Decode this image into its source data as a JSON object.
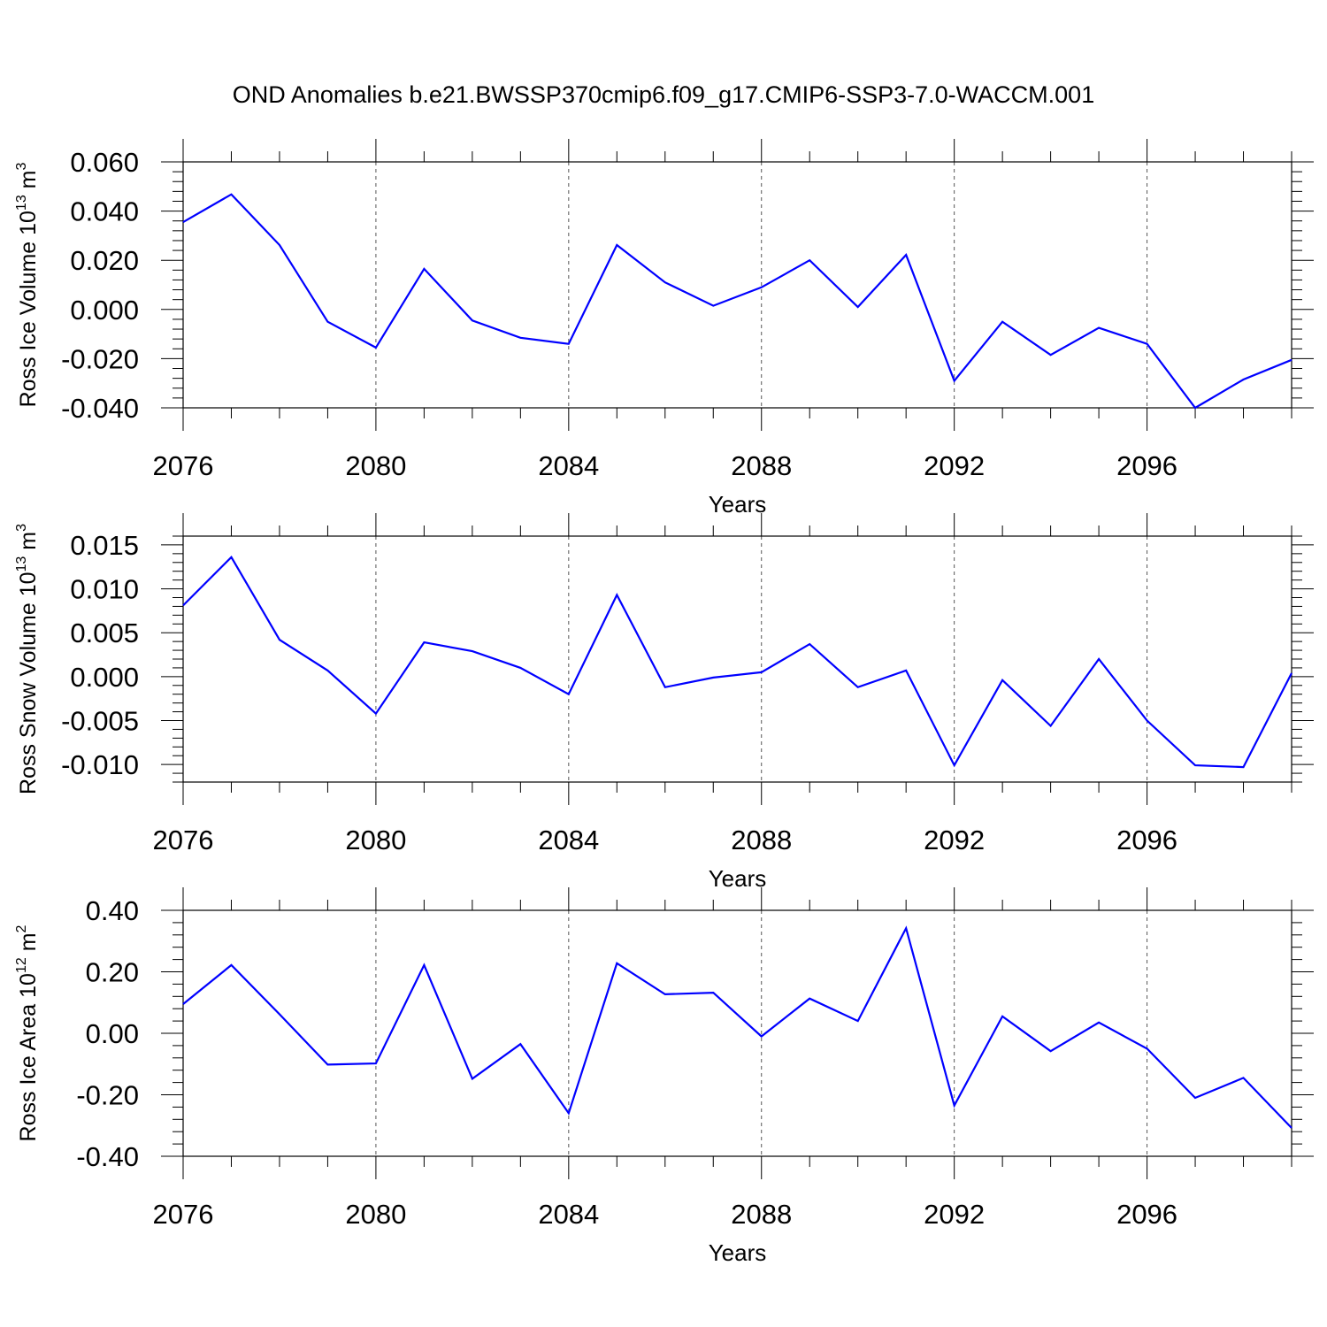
{
  "figure": {
    "title": "OND Anomalies b.e21.BWSSP370cmip6.f09_g17.CMIP6-SSP3-7.0-WACCM.001",
    "line_color": "#0000ff"
  },
  "chart_data": [
    {
      "type": "line",
      "title": "",
      "xlabel": "Years",
      "ylabel": "Ross Ice Volume 10^13 m^3",
      "ylabel_parts": [
        "Ross Ice Volume 10",
        "13",
        " m",
        "3"
      ],
      "xlim": [
        2076,
        2099
      ],
      "ylim": [
        -0.04,
        0.06
      ],
      "xticks": [
        "2076",
        "2080",
        "2084",
        "2088",
        "2092",
        "2096"
      ],
      "yticks": [
        "0.060",
        "0.040",
        "0.020",
        "0.000",
        "-0.020",
        "-0.040"
      ],
      "ytick_values": [
        0.06,
        0.04,
        0.02,
        0.0,
        -0.02,
        -0.04
      ],
      "grid": "vertical dashed at major x ticks",
      "x": [
        2076,
        2077,
        2078,
        2079,
        2080,
        2081,
        2082,
        2083,
        2084,
        2085,
        2086,
        2087,
        2088,
        2089,
        2090,
        2091,
        2092,
        2093,
        2094,
        2095,
        2096,
        2097,
        2098,
        2099
      ],
      "series": [
        {
          "values": [
            0.0355,
            0.0468,
            0.0262,
            -0.005,
            -0.0155,
            0.0165,
            -0.0045,
            -0.0115,
            -0.014,
            0.0262,
            0.011,
            0.0015,
            0.009,
            0.02,
            0.001,
            0.0222,
            -0.029,
            -0.005,
            -0.0185,
            -0.0075,
            -0.014,
            -0.04,
            -0.0285,
            -0.0205
          ]
        }
      ]
    },
    {
      "type": "line",
      "title": "",
      "xlabel": "Years",
      "ylabel": "Ross Snow Volume 10^13 m^3",
      "ylabel_parts": [
        "Ross Snow Volume 10",
        "13",
        " m",
        "3"
      ],
      "xlim": [
        2076,
        2099
      ],
      "ylim": [
        -0.012,
        0.016
      ],
      "xticks": [
        "2076",
        "2080",
        "2084",
        "2088",
        "2092",
        "2096"
      ],
      "yticks": [
        "0.015",
        "0.010",
        "0.005",
        "0.000",
        "-0.005",
        "-0.010"
      ],
      "ytick_values": [
        0.015,
        0.01,
        0.005,
        0.0,
        -0.005,
        -0.01
      ],
      "grid": "vertical dashed at major x ticks",
      "x": [
        2076,
        2077,
        2078,
        2079,
        2080,
        2081,
        2082,
        2083,
        2084,
        2085,
        2086,
        2087,
        2088,
        2089,
        2090,
        2091,
        2092,
        2093,
        2094,
        2095,
        2096,
        2097,
        2098,
        2099
      ],
      "series": [
        {
          "values": [
            0.0081,
            0.0136,
            0.0042,
            0.0007,
            -0.0042,
            0.0039,
            0.0029,
            0.001,
            -0.002,
            0.0093,
            -0.0012,
            -0.0001,
            0.0005,
            0.0037,
            -0.0012,
            0.0007,
            -0.0101,
            -0.0004,
            -0.0056,
            0.002,
            -0.005,
            -0.0101,
            -0.0103,
            0.0004
          ]
        }
      ]
    },
    {
      "type": "line",
      "title": "",
      "xlabel": "Years",
      "ylabel": "Ross Ice Area 10^12 m^2",
      "ylabel_parts": [
        "Ross Ice Area 10",
        "12",
        " m",
        "2"
      ],
      "xlim": [
        2076,
        2099
      ],
      "ylim": [
        -0.4,
        0.4
      ],
      "xticks": [
        "2076",
        "2080",
        "2084",
        "2088",
        "2092",
        "2096"
      ],
      "yticks": [
        "0.40",
        "0.20",
        "0.00",
        "-0.20",
        "-0.40"
      ],
      "ytick_values": [
        0.4,
        0.2,
        0.0,
        -0.2,
        -0.4
      ],
      "grid": "vertical dashed at major x ticks",
      "x": [
        2076,
        2077,
        2078,
        2079,
        2080,
        2081,
        2082,
        2083,
        2084,
        2085,
        2086,
        2087,
        2088,
        2089,
        2090,
        2091,
        2092,
        2093,
        2094,
        2095,
        2096,
        2097,
        2098,
        2099
      ],
      "series": [
        {
          "values": [
            0.095,
            0.222,
            0.062,
            -0.102,
            -0.098,
            0.222,
            -0.148,
            -0.035,
            -0.26,
            0.228,
            0.127,
            0.132,
            -0.01,
            0.113,
            0.04,
            0.342,
            -0.235,
            0.055,
            -0.058,
            0.035,
            -0.05,
            -0.21,
            -0.145,
            -0.308
          ]
        }
      ]
    }
  ]
}
